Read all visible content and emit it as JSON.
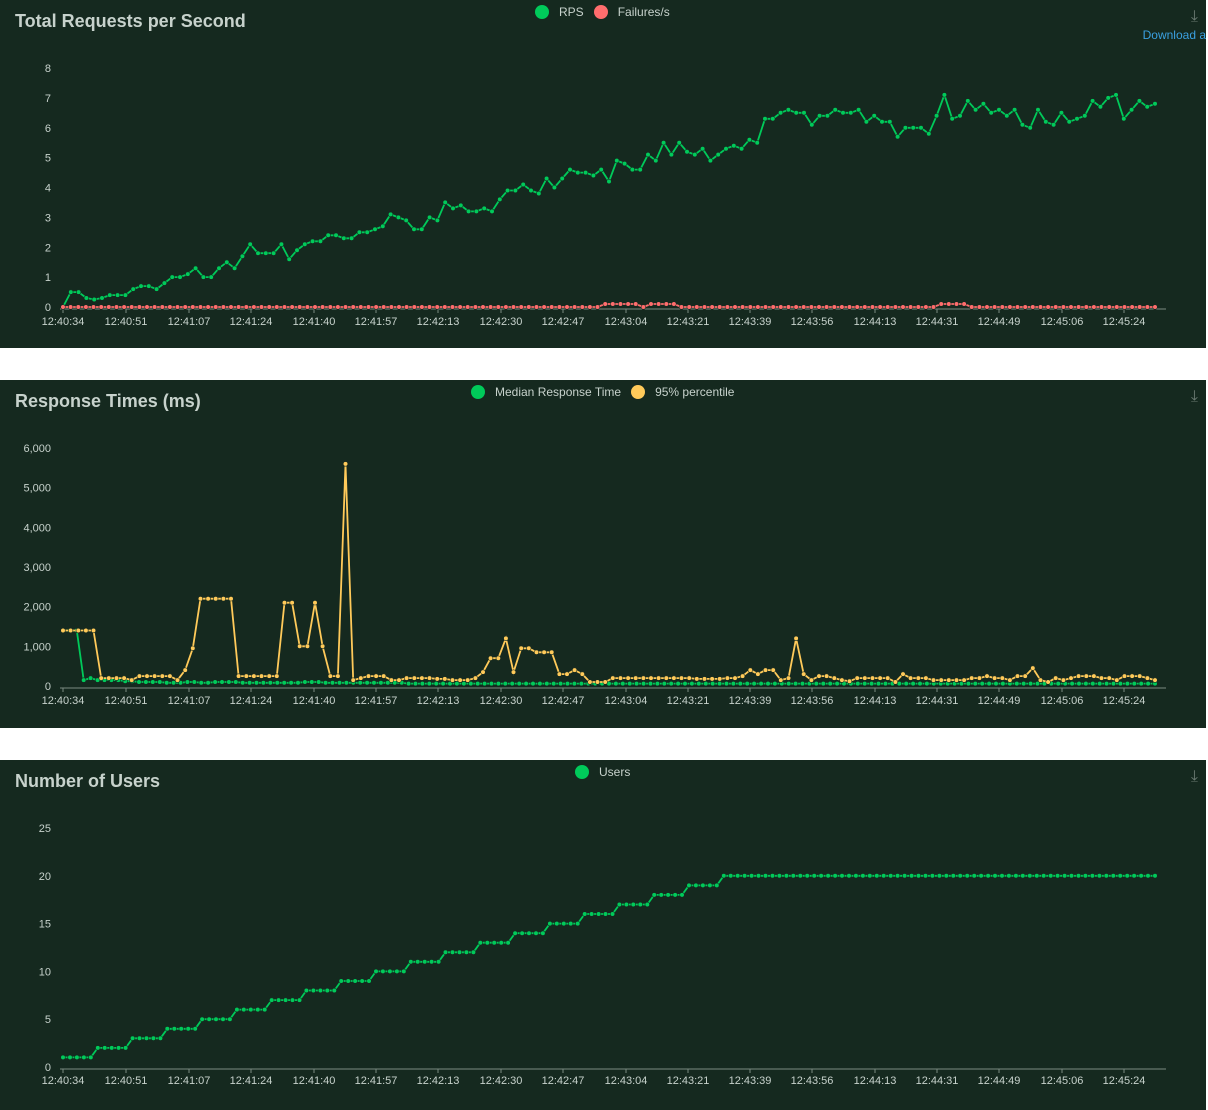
{
  "panels": [
    {
      "title": "Total Requests per Second",
      "legend": [
        "RPS",
        "Failures/s"
      ],
      "download_label": "Download a"
    },
    {
      "title": "Response Times (ms)",
      "legend": [
        "Median Response Time",
        "95% percentile"
      ]
    },
    {
      "title": "Number of Users",
      "legend": [
        "Users"
      ]
    }
  ],
  "colors": {
    "green": "#00ca5a",
    "red": "#ff6d6d",
    "yellow": "#ffca5a",
    "panel_bg": "#15291f",
    "text": "#c7d2cc"
  },
  "chart_data": [
    {
      "type": "line",
      "title": "Total Requests per Second",
      "x_ticks": [
        "12:40:34",
        "12:40:51",
        "12:41:07",
        "12:41:24",
        "12:41:40",
        "12:41:57",
        "12:42:13",
        "12:42:30",
        "12:42:47",
        "12:43:04",
        "12:43:21",
        "12:43:39",
        "12:43:56",
        "12:44:13",
        "12:44:31",
        "12:44:49",
        "12:45:06",
        "12:45:24"
      ],
      "y_ticks": [
        "0",
        "1",
        "2",
        "3",
        "4",
        "5",
        "6",
        "7",
        "8"
      ],
      "ylim": [
        0,
        8
      ],
      "series": [
        {
          "name": "RPS",
          "color": "#00ca5a",
          "values": [
            0,
            0.5,
            0.5,
            0.3,
            0.25,
            0.3,
            0.4,
            0.4,
            0.4,
            0.6,
            0.7,
            0.7,
            0.6,
            0.8,
            1,
            1,
            1.1,
            1.3,
            1,
            1,
            1.3,
            1.5,
            1.3,
            1.7,
            2.1,
            1.8,
            1.8,
            1.8,
            2.1,
            1.6,
            1.9,
            2.1,
            2.2,
            2.2,
            2.4,
            2.4,
            2.3,
            2.3,
            2.5,
            2.5,
            2.6,
            2.7,
            3.1,
            3,
            2.9,
            2.6,
            2.6,
            3,
            2.9,
            3.5,
            3.3,
            3.4,
            3.2,
            3.2,
            3.3,
            3.2,
            3.6,
            3.9,
            3.9,
            4.1,
            3.9,
            3.8,
            4.3,
            4,
            4.3,
            4.6,
            4.5,
            4.5,
            4.4,
            4.6,
            4.2,
            4.9,
            4.8,
            4.6,
            4.6,
            5.1,
            4.9,
            5.5,
            5.1,
            5.5,
            5.2,
            5.1,
            5.3,
            4.9,
            5.1,
            5.3,
            5.4,
            5.3,
            5.6,
            5.5,
            6.3,
            6.3,
            6.5,
            6.6,
            6.5,
            6.5,
            6.1,
            6.4,
            6.4,
            6.6,
            6.5,
            6.5,
            6.6,
            6.2,
            6.4,
            6.2,
            6.2,
            5.7,
            6,
            6,
            6,
            5.8,
            6.4,
            7.1,
            6.3,
            6.4,
            6.9,
            6.6,
            6.8,
            6.5,
            6.6,
            6.4,
            6.6,
            6.1,
            6,
            6.6,
            6.2,
            6.1,
            6.5,
            6.2,
            6.3,
            6.4,
            6.9,
            6.7,
            7,
            7.1,
            6.3,
            6.6,
            6.9,
            6.7,
            6.8
          ]
        },
        {
          "name": "Failures/s",
          "color": "#ff6d6d",
          "values": [
            0,
            0,
            0,
            0,
            0,
            0,
            0,
            0,
            0,
            0,
            0,
            0,
            0,
            0,
            0,
            0,
            0,
            0,
            0,
            0,
            0,
            0,
            0,
            0,
            0,
            0,
            0,
            0,
            0,
            0,
            0,
            0,
            0,
            0,
            0,
            0,
            0,
            0,
            0,
            0,
            0,
            0,
            0,
            0,
            0,
            0,
            0,
            0,
            0,
            0,
            0,
            0,
            0,
            0,
            0,
            0,
            0,
            0,
            0,
            0,
            0,
            0,
            0,
            0,
            0,
            0,
            0,
            0,
            0,
            0,
            0,
            0.1,
            0.1,
            0.1,
            0.1,
            0.1,
            0,
            0.1,
            0.1,
            0.1,
            0.1,
            0,
            0,
            0,
            0,
            0,
            0,
            0,
            0,
            0,
            0,
            0,
            0,
            0,
            0,
            0,
            0,
            0,
            0,
            0,
            0,
            0,
            0,
            0,
            0,
            0,
            0,
            0,
            0,
            0,
            0,
            0,
            0,
            0,
            0,
            0.1,
            0.1,
            0.1,
            0.1,
            0,
            0,
            0,
            0,
            0,
            0,
            0,
            0,
            0,
            0,
            0,
            0,
            0,
            0,
            0,
            0,
            0,
            0,
            0,
            0,
            0,
            0,
            0,
            0,
            0
          ]
        }
      ]
    },
    {
      "type": "line",
      "title": "Response Times (ms)",
      "x_ticks": [
        "12:40:34",
        "12:40:51",
        "12:41:07",
        "12:41:24",
        "12:41:40",
        "12:41:57",
        "12:42:13",
        "12:42:30",
        "12:42:47",
        "12:43:04",
        "12:43:21",
        "12:43:39",
        "12:43:56",
        "12:44:13",
        "12:44:31",
        "12:44:49",
        "12:45:06",
        "12:45:24"
      ],
      "y_ticks": [
        "0",
        "1,000",
        "2,000",
        "3,000",
        "4,000",
        "5,000",
        "6,000"
      ],
      "ylim": [
        0,
        6000
      ],
      "series": [
        {
          "name": "Median Response Time",
          "color": "#00ca5a",
          "values": [
            1400,
            1400,
            1400,
            150,
            200,
            150,
            150,
            150,
            150,
            120,
            120,
            100,
            100,
            100,
            100,
            80,
            80,
            80,
            100,
            100,
            80,
            80,
            100,
            100,
            100,
            100,
            80,
            80,
            80,
            80,
            80,
            80,
            80,
            80,
            80,
            100,
            100,
            100,
            80,
            80,
            80,
            80,
            80,
            80,
            80,
            80,
            80,
            80,
            80,
            80,
            60,
            60,
            60,
            60,
            60,
            60,
            60,
            60,
            60,
            60,
            60,
            60,
            60,
            60,
            60,
            60,
            60,
            60,
            60,
            60,
            60,
            60,
            60,
            60,
            60,
            60,
            60,
            60,
            60,
            60,
            60,
            60,
            60,
            60,
            60,
            60,
            60,
            60,
            60,
            60,
            60,
            60,
            60,
            60,
            60,
            60,
            60,
            60,
            60,
            60,
            60,
            60,
            60,
            60,
            60,
            60,
            60,
            60,
            60,
            60,
            60,
            60,
            60,
            60,
            60,
            60,
            60,
            60,
            60,
            60,
            60,
            60,
            60,
            60,
            60,
            60,
            60,
            60,
            60,
            60,
            60,
            60,
            60,
            60,
            60,
            60,
            60,
            60,
            60,
            60,
            60,
            60,
            60,
            60,
            60,
            60,
            60,
            60,
            60,
            60,
            60,
            60,
            60,
            60,
            60,
            60,
            60,
            60,
            60
          ]
        },
        {
          "name": "95% percentile",
          "color": "#ffca5a",
          "values": [
            1400,
            1400,
            1400,
            1400,
            1400,
            200,
            200,
            200,
            200,
            150,
            250,
            250,
            250,
            250,
            250,
            150,
            400,
            950,
            2200,
            2200,
            2200,
            2200,
            2200,
            250,
            250,
            250,
            250,
            250,
            250,
            2100,
            2100,
            1000,
            1000,
            2100,
            1000,
            250,
            250,
            5600,
            150,
            200,
            250,
            250,
            250,
            150,
            150,
            200,
            200,
            200,
            200,
            180,
            180,
            150,
            150,
            150,
            200,
            350,
            700,
            700,
            1200,
            350,
            950,
            950,
            850,
            850,
            850,
            300,
            300,
            400,
            300,
            100,
            100,
            100,
            200,
            200,
            200,
            200,
            200,
            200,
            200,
            200,
            200,
            200,
            200,
            180,
            180,
            180,
            180,
            200,
            200,
            250,
            400,
            300,
            400,
            400,
            150,
            200,
            1200,
            300,
            150,
            250,
            250,
            200,
            150,
            120,
            200,
            200,
            200,
            200,
            200,
            100,
            300,
            200,
            200,
            200,
            150,
            150,
            150,
            150,
            150,
            200,
            200,
            250,
            200,
            200,
            150,
            250,
            250,
            450,
            150,
            100,
            200,
            150,
            200,
            250,
            250,
            250,
            200,
            200,
            150,
            250,
            250,
            250,
            200,
            150
          ]
        }
      ]
    },
    {
      "type": "line",
      "title": "Number of Users",
      "x_ticks": [
        "12:40:34",
        "12:40:51",
        "12:41:07",
        "12:41:24",
        "12:41:40",
        "12:41:57",
        "12:42:13",
        "12:42:30",
        "12:42:47",
        "12:43:04",
        "12:43:21",
        "12:43:39",
        "12:43:56",
        "12:44:13",
        "12:44:31",
        "12:44:49",
        "12:45:06",
        "12:45:24"
      ],
      "y_ticks": [
        "0",
        "5",
        "10",
        "15",
        "20",
        "25"
      ],
      "ylim": [
        0,
        25
      ],
      "series": [
        {
          "name": "Users",
          "color": "#00ca5a",
          "values": [
            1,
            1,
            1,
            1,
            1,
            2,
            2,
            2,
            2,
            2,
            3,
            3,
            3,
            3,
            3,
            4,
            4,
            4,
            4,
            4,
            5,
            5,
            5,
            5,
            5,
            6,
            6,
            6,
            6,
            6,
            7,
            7,
            7,
            7,
            7,
            8,
            8,
            8,
            8,
            8,
            9,
            9,
            9,
            9,
            9,
            10,
            10,
            10,
            10,
            10,
            11,
            11,
            11,
            11,
            11,
            12,
            12,
            12,
            12,
            12,
            13,
            13,
            13,
            13,
            13,
            14,
            14,
            14,
            14,
            14,
            15,
            15,
            15,
            15,
            15,
            16,
            16,
            16,
            16,
            16,
            17,
            17,
            17,
            17,
            17,
            18,
            18,
            18,
            18,
            18,
            19,
            19,
            19,
            19,
            19,
            20,
            20,
            20,
            20,
            20,
            20,
            20,
            20,
            20,
            20,
            20,
            20,
            20,
            20,
            20,
            20,
            20,
            20,
            20,
            20,
            20,
            20,
            20,
            20,
            20,
            20,
            20,
            20,
            20,
            20,
            20,
            20,
            20,
            20,
            20,
            20,
            20,
            20,
            20,
            20,
            20,
            20,
            20,
            20,
            20,
            20,
            20,
            20,
            20,
            20,
            20,
            20,
            20,
            20,
            20,
            20,
            20,
            20,
            20,
            20,
            20,
            20,
            20
          ]
        }
      ]
    }
  ]
}
